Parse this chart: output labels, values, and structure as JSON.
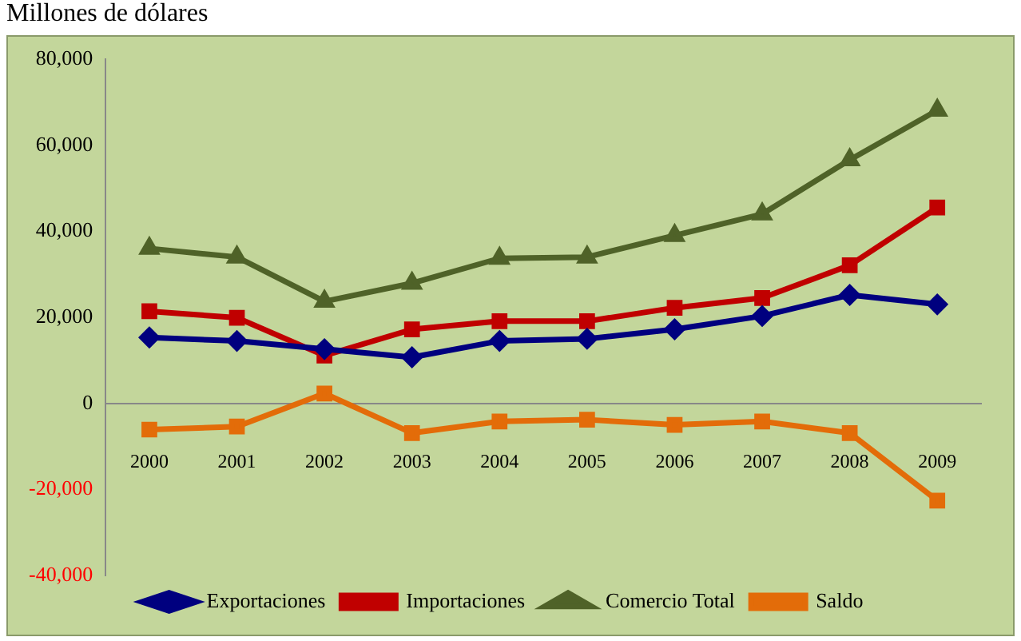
{
  "chart_data": {
    "type": "line",
    "title": "Millones de dólares",
    "categories": [
      "2000",
      "2001",
      "2002",
      "2003",
      "2004",
      "2005",
      "2006",
      "2007",
      "2008",
      "2009"
    ],
    "series": [
      {
        "name": "Exportaciones",
        "color": "#00007f",
        "marker": "diamond",
        "values": [
          15300,
          14500,
          12600,
          10700,
          14500,
          15000,
          17200,
          20300,
          25200,
          23000
        ]
      },
      {
        "name": "Importaciones",
        "color": "#c00000",
        "marker": "square",
        "values": [
          21400,
          19900,
          11100,
          17200,
          19100,
          19100,
          22200,
          24500,
          32100,
          45500
        ]
      },
      {
        "name": "Comercio Total",
        "color": "#4f6228",
        "marker": "triangle",
        "values": [
          36000,
          34000,
          23700,
          27900,
          33700,
          34000,
          39000,
          44000,
          56600,
          68100
        ]
      },
      {
        "name": "Saldo",
        "color": "#e36c09",
        "marker": "square",
        "values": [
          -6100,
          -5400,
          2300,
          -6900,
          -4200,
          -3800,
          -5000,
          -4200,
          -6900,
          -22600
        ]
      }
    ],
    "ylim": [
      -40000,
      80000
    ],
    "yticks": [
      {
        "value": -40000,
        "label": "-40,000"
      },
      {
        "value": -20000,
        "label": "-20,000"
      },
      {
        "value": 0,
        "label": "0"
      },
      {
        "value": 20000,
        "label": "20,000"
      },
      {
        "value": 40000,
        "label": "40,000"
      },
      {
        "value": 60000,
        "label": "60,000"
      },
      {
        "value": 80000,
        "label": "80,000"
      }
    ],
    "grid": false,
    "legend": "bottom",
    "line_style": "solid"
  }
}
